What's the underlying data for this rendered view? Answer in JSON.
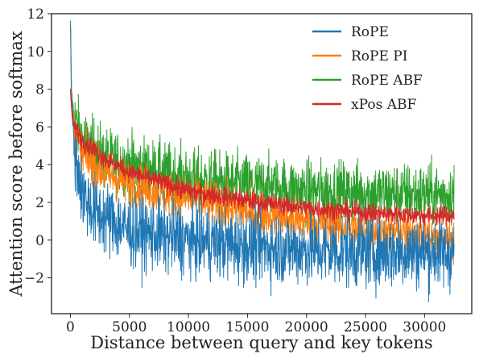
{
  "chart_data": {
    "type": "line",
    "title": "",
    "xlabel": "Distance between query and key tokens",
    "ylabel": "Attention score before softmax",
    "xlim": [
      -1600,
      34000
    ],
    "ylim": [
      -3.9,
      12
    ],
    "x_ticks": [
      0,
      5000,
      10000,
      15000,
      20000,
      25000,
      30000
    ],
    "y_ticks": [
      -2,
      0,
      2,
      4,
      6,
      8,
      10,
      12
    ],
    "x_tick_labels": [
      "0",
      "5000",
      "10000",
      "15000",
      "20000",
      "25000",
      "30000"
    ],
    "y_tick_labels": [
      "−2",
      "0",
      "2",
      "4",
      "6",
      "8",
      "10",
      "12"
    ],
    "grid": false,
    "legend_position": "top-right",
    "x_range": [
      0,
      32500
    ],
    "series": [
      {
        "name": "RoPE",
        "color": "#1f77b4",
        "noisy": true,
        "trend_points": [
          [
            0,
            11.3
          ],
          [
            100,
            7.5
          ],
          [
            300,
            5.0
          ],
          [
            1000,
            2.5
          ],
          [
            2000,
            1.5
          ],
          [
            5000,
            0.5
          ],
          [
            10000,
            0.0
          ],
          [
            15000,
            -0.3
          ],
          [
            20000,
            -0.5
          ],
          [
            25000,
            -0.6
          ],
          [
            30000,
            -0.6
          ],
          [
            32500,
            -0.7
          ]
        ],
        "noise_amplitude": 1.3
      },
      {
        "name": "RoPE PI",
        "color": "#ff7f0e",
        "noisy": true,
        "trend_points": [
          [
            0,
            11.3
          ],
          [
            100,
            7.5
          ],
          [
            300,
            6.0
          ],
          [
            1000,
            4.5
          ],
          [
            3000,
            3.5
          ],
          [
            5000,
            3.0
          ],
          [
            10000,
            2.2
          ],
          [
            15000,
            1.5
          ],
          [
            20000,
            1.0
          ],
          [
            25000,
            0.5
          ],
          [
            30000,
            0.3
          ],
          [
            32500,
            0.0
          ]
        ],
        "noise_amplitude": 0.8
      },
      {
        "name": "RoPE ABF",
        "color": "#2ca02c",
        "noisy": true,
        "trend_points": [
          [
            0,
            11.3
          ],
          [
            100,
            7.8
          ],
          [
            300,
            6.5
          ],
          [
            1000,
            5.3
          ],
          [
            3000,
            4.3
          ],
          [
            5000,
            4.0
          ],
          [
            10000,
            3.2
          ],
          [
            15000,
            2.9
          ],
          [
            20000,
            2.6
          ],
          [
            25000,
            2.5
          ],
          [
            30000,
            2.4
          ],
          [
            32500,
            2.4
          ]
        ],
        "noise_amplitude": 1.1
      },
      {
        "name": "xPos ABF",
        "color": "#d62728",
        "noisy": true,
        "trend_points": [
          [
            0,
            8.0
          ],
          [
            100,
            6.8
          ],
          [
            300,
            6.0
          ],
          [
            1000,
            5.3
          ],
          [
            3000,
            4.3
          ],
          [
            5000,
            3.6
          ],
          [
            10000,
            2.6
          ],
          [
            15000,
            2.1
          ],
          [
            20000,
            1.7
          ],
          [
            25000,
            1.45
          ],
          [
            30000,
            1.3
          ],
          [
            32500,
            1.3
          ]
        ],
        "noise_amplitude": 0.35
      }
    ]
  }
}
